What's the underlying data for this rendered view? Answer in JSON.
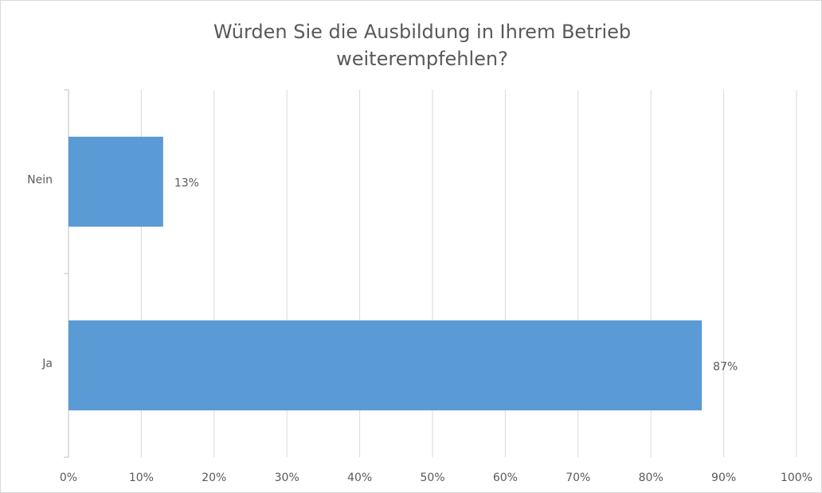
{
  "chart_data": {
    "type": "bar",
    "orientation": "horizontal",
    "title": [
      "Würden Sie die Ausbildung in Ihrem Betrieb",
      "weiterempfehlen?"
    ],
    "categories": [
      "Nein",
      "Ja"
    ],
    "values": [
      13,
      87
    ],
    "value_labels": [
      "13%",
      "87%"
    ],
    "color": "#5b9bd5",
    "xlim": [
      0,
      100
    ],
    "xticks": [
      {
        "value": 0,
        "label": "0%"
      },
      {
        "value": 10,
        "label": "10%"
      },
      {
        "value": 20,
        "label": "20%"
      },
      {
        "value": 30,
        "label": "30%"
      },
      {
        "value": 40,
        "label": "40%"
      },
      {
        "value": 50,
        "label": "50%"
      },
      {
        "value": 60,
        "label": "60%"
      },
      {
        "value": 70,
        "label": "70%"
      },
      {
        "value": 80,
        "label": "80%"
      },
      {
        "value": 90,
        "label": "90%"
      },
      {
        "value": 100,
        "label": "100%"
      }
    ],
    "grid": true
  }
}
